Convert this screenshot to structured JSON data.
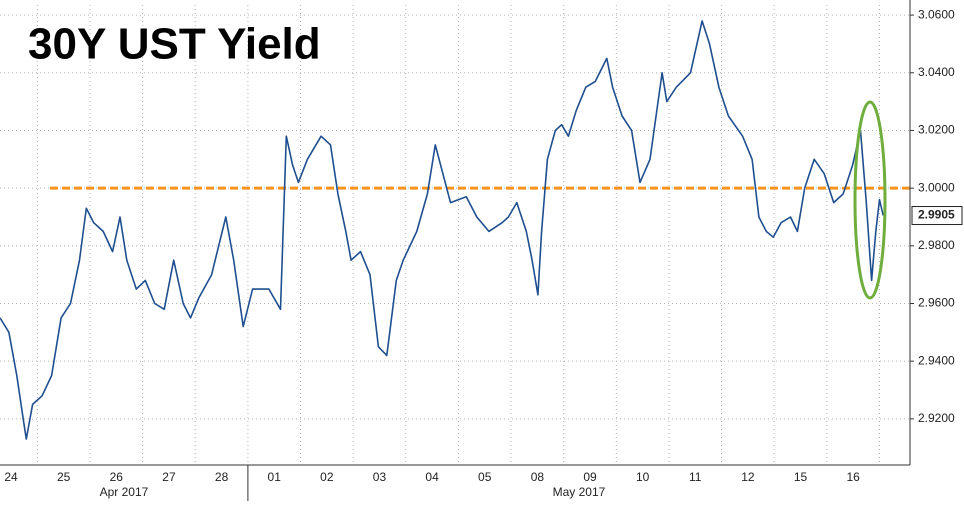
{
  "chart_data": {
    "type": "line",
    "title": "30Y UST Yield",
    "categories": [
      "24",
      "25",
      "26",
      "27",
      "28",
      "01",
      "02",
      "03",
      "04",
      "05",
      "08",
      "09",
      "10",
      "11",
      "12",
      "15",
      "16"
    ],
    "month_labels": [
      "Apr 2017",
      "May 2017"
    ],
    "xlim": [
      0.29,
      17.58
    ],
    "xticks": [
      1,
      2,
      3,
      4,
      5,
      6,
      7,
      8,
      9,
      10,
      11,
      12,
      13,
      14,
      15,
      16,
      17
    ],
    "ylim": [
      2.904,
      3.0635
    ],
    "yticks": [
      {
        "value": 2.92,
        "label": "2.9200"
      },
      {
        "value": 2.94,
        "label": "2.9400"
      },
      {
        "value": 2.96,
        "label": "2.9600"
      },
      {
        "value": 2.98,
        "label": "2.9800"
      },
      {
        "value": 3.0,
        "label": "3.0000"
      },
      {
        "value": 3.02,
        "label": "3.0200"
      },
      {
        "value": 3.04,
        "label": "3.0400"
      },
      {
        "value": 3.06,
        "label": "3.0600"
      }
    ],
    "grid": true,
    "series": [
      {
        "color": "#1f4f8f",
        "x": [
          0.29,
          0.46,
          0.61,
          0.73,
          0.79,
          0.91,
          1.09,
          1.27,
          1.45,
          1.63,
          1.8,
          1.93,
          2.07,
          2.25,
          2.43,
          2.57,
          2.7,
          2.88,
          3.05,
          3.23,
          3.41,
          3.59,
          3.77,
          3.91,
          4.07,
          4.31,
          4.58,
          4.73,
          4.91,
          5.09,
          5.4,
          5.62,
          5.73,
          5.85,
          5.96,
          6.13,
          6.39,
          6.57,
          6.71,
          6.86,
          6.96,
          7.14,
          7.32,
          7.48,
          7.64,
          7.82,
          7.95,
          8.21,
          8.41,
          8.56,
          8.85,
          9.15,
          9.35,
          9.58,
          9.83,
          9.95,
          10.11,
          10.29,
          10.4,
          10.51,
          10.58,
          10.69,
          10.84,
          10.96,
          11.09,
          11.24,
          11.42,
          11.6,
          11.82,
          11.93,
          12.11,
          12.29,
          12.45,
          12.64,
          12.87,
          12.96,
          13.14,
          13.41,
          13.63,
          13.77,
          13.95,
          14.13,
          14.4,
          14.58,
          14.71,
          14.85,
          14.98,
          15.13,
          15.31,
          15.44,
          15.58,
          15.76,
          15.95,
          16.13,
          16.31,
          16.49,
          16.64,
          16.75,
          16.85,
          16.93,
          17.0,
          17.07
        ],
        "values": [
          2.955,
          2.95,
          2.935,
          2.92,
          2.913,
          2.925,
          2.928,
          2.935,
          2.955,
          2.96,
          2.975,
          2.993,
          2.988,
          2.985,
          2.978,
          2.99,
          2.975,
          2.965,
          2.968,
          2.96,
          2.958,
          2.975,
          2.96,
          2.955,
          2.962,
          2.97,
          2.99,
          2.975,
          2.952,
          2.965,
          2.965,
          2.958,
          3.018,
          3.008,
          3.002,
          3.01,
          3.018,
          3.015,
          2.998,
          2.985,
          2.975,
          2.978,
          2.97,
          2.945,
          2.942,
          2.968,
          2.975,
          2.985,
          2.998,
          3.015,
          2.995,
          2.997,
          2.99,
          2.985,
          2.988,
          2.99,
          2.995,
          2.985,
          2.975,
          2.963,
          2.985,
          3.01,
          3.02,
          3.022,
          3.018,
          3.027,
          3.035,
          3.037,
          3.045,
          3.035,
          3.025,
          3.02,
          3.002,
          3.01,
          3.04,
          3.03,
          3.035,
          3.04,
          3.058,
          3.05,
          3.035,
          3.025,
          3.018,
          3.01,
          2.99,
          2.985,
          2.983,
          2.988,
          2.99,
          2.985,
          3.0,
          3.01,
          3.005,
          2.995,
          2.998,
          3.008,
          3.02,
          2.995,
          2.968,
          2.985,
          2.996,
          2.9905
        ]
      }
    ],
    "reference_line": {
      "value": 3.0,
      "color": "#f7941d"
    },
    "last_value": {
      "value": 2.9905,
      "label": "2.9905"
    }
  }
}
